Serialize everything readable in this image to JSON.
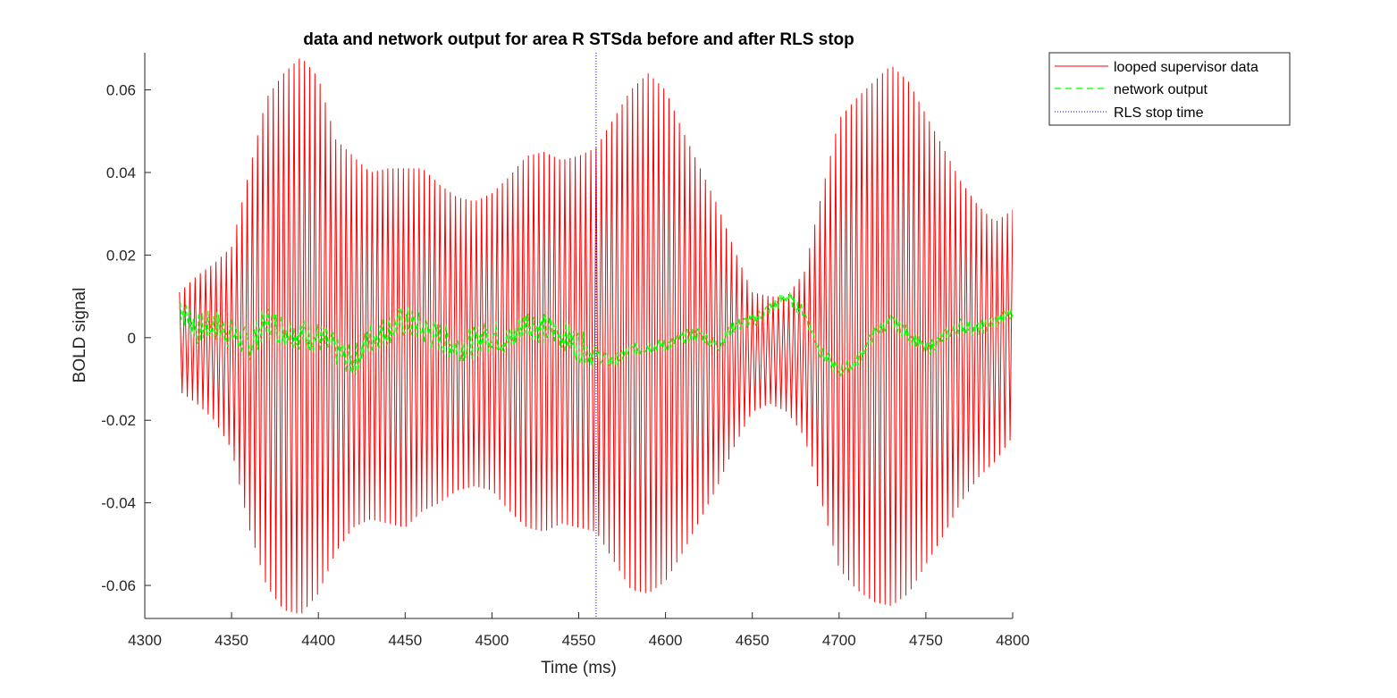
{
  "chart_data": {
    "type": "line",
    "title": "data and network output for area R STSda before and after RLS stop",
    "xlabel": "Time (ms)",
    "ylabel": "BOLD signal",
    "xlim": [
      4300,
      4800
    ],
    "ylim": [
      -0.068,
      0.069
    ],
    "xticks": [
      4300,
      4350,
      4400,
      4450,
      4500,
      4550,
      4600,
      4650,
      4700,
      4750,
      4800
    ],
    "yticks": [
      -0.06,
      -0.04,
      -0.02,
      0,
      0.02,
      0.04,
      0.06
    ],
    "xtick_labels": [
      "4300",
      "4350",
      "4400",
      "4450",
      "4500",
      "4550",
      "4600",
      "4650",
      "4700",
      "4750",
      "4800"
    ],
    "ytick_labels": [
      "-0.06",
      "-0.04",
      "-0.02",
      "0",
      "0.02",
      "0.04",
      "0.06"
    ],
    "grid": false,
    "legend_position": "outside-top-right",
    "series": [
      {
        "name": "looped supervisor data",
        "color": "#ff0000",
        "style": "solid",
        "oscillation_period_ms": 3,
        "x_start": 4320,
        "x_end": 4800,
        "envelope": {
          "x": [
            4320,
            4330,
            4340,
            4350,
            4360,
            4370,
            4380,
            4390,
            4400,
            4410,
            4420,
            4430,
            4440,
            4450,
            4460,
            4470,
            4480,
            4490,
            4500,
            4510,
            4520,
            4530,
            4540,
            4550,
            4560,
            4570,
            4580,
            4590,
            4600,
            4610,
            4620,
            4630,
            4640,
            4650,
            4660,
            4670,
            4680,
            4690,
            4700,
            4710,
            4720,
            4730,
            4740,
            4750,
            4760,
            4770,
            4780,
            4790,
            4800
          ],
          "upper": [
            0.011,
            0.015,
            0.018,
            0.022,
            0.04,
            0.058,
            0.064,
            0.068,
            0.063,
            0.048,
            0.044,
            0.04,
            0.041,
            0.041,
            0.041,
            0.037,
            0.034,
            0.033,
            0.035,
            0.039,
            0.044,
            0.045,
            0.043,
            0.044,
            0.046,
            0.053,
            0.06,
            0.064,
            0.06,
            0.05,
            0.041,
            0.032,
            0.021,
            0.011,
            0.01,
            0.01,
            0.016,
            0.035,
            0.053,
            0.058,
            0.062,
            0.066,
            0.062,
            0.054,
            0.046,
            0.038,
            0.032,
            0.028,
            0.031
          ],
          "lower": [
            -0.013,
            -0.016,
            -0.02,
            -0.027,
            -0.046,
            -0.06,
            -0.066,
            -0.067,
            -0.062,
            -0.052,
            -0.046,
            -0.044,
            -0.045,
            -0.046,
            -0.042,
            -0.04,
            -0.037,
            -0.036,
            -0.037,
            -0.042,
            -0.046,
            -0.047,
            -0.045,
            -0.046,
            -0.047,
            -0.054,
            -0.061,
            -0.062,
            -0.059,
            -0.052,
            -0.044,
            -0.036,
            -0.026,
            -0.018,
            -0.016,
            -0.018,
            -0.024,
            -0.04,
            -0.056,
            -0.061,
            -0.064,
            -0.065,
            -0.062,
            -0.055,
            -0.048,
            -0.04,
            -0.034,
            -0.03,
            -0.024
          ]
        }
      },
      {
        "name": "network output",
        "color": "#00ff00",
        "style": "dashed",
        "x": [
          4320,
          4330,
          4340,
          4350,
          4360,
          4370,
          4380,
          4390,
          4400,
          4410,
          4420,
          4430,
          4440,
          4450,
          4460,
          4470,
          4480,
          4490,
          4500,
          4510,
          4520,
          4530,
          4540,
          4550,
          4560,
          4570,
          4580,
          4590,
          4600,
          4610,
          4620,
          4630,
          4640,
          4650,
          4660,
          4670,
          4680,
          4690,
          4700,
          4710,
          4720,
          4730,
          4740,
          4750,
          4760,
          4770,
          4780,
          4790,
          4800
        ],
        "y": [
          0.008,
          0.002,
          0.003,
          0.001,
          -0.002,
          0.004,
          0.002,
          0.001,
          0.0,
          -0.003,
          -0.006,
          0.0,
          0.002,
          0.004,
          0.002,
          0.0,
          -0.002,
          -0.001,
          0.001,
          -0.001,
          0.004,
          0.002,
          0.001,
          -0.002,
          -0.004,
          -0.006,
          -0.003,
          -0.002,
          -0.002,
          0.0,
          0.001,
          -0.002,
          0.003,
          0.004,
          0.007,
          0.01,
          0.006,
          -0.004,
          -0.008,
          -0.006,
          0.001,
          0.004,
          0.001,
          -0.003,
          0.0,
          0.003,
          0.002,
          0.004,
          0.006
        ],
        "noise_amplitude": 0.004,
        "noise_until_x": 4560
      },
      {
        "name": "RLS stop time",
        "color": "#0000ff",
        "style": "dotted",
        "x": 4560
      }
    ]
  }
}
